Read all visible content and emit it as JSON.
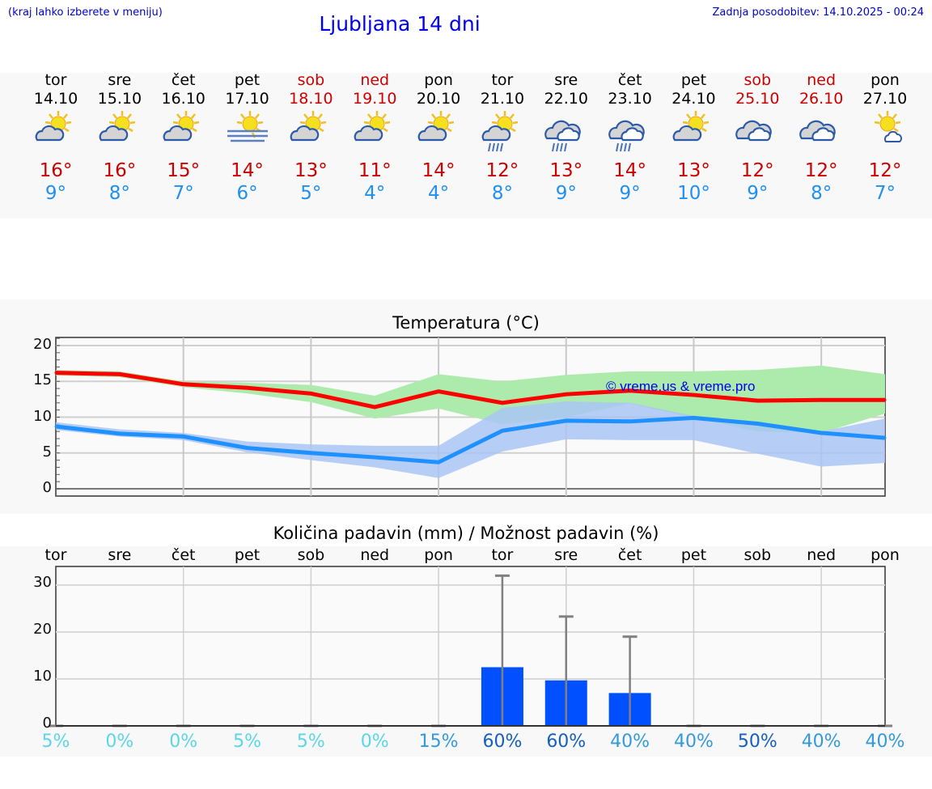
{
  "header": {
    "hint": "(kraj lahko izberete v meniju)",
    "title": "Ljubljana 14 dni",
    "updated": "Zadnja posodobitev: 14.10.2025 - 00:24"
  },
  "colors": {
    "weekday": "#000000",
    "weekend": "#cc0000",
    "max": "#ff0000",
    "min": "#1e90ff",
    "max_band": "#acebac",
    "min_band": "#a9c6f3",
    "bar": "#0050ff",
    "error": "#808080"
  },
  "days": [
    {
      "dow": "tor",
      "date": "14.10",
      "weekend": false,
      "icon": "partly-cloudy-icon",
      "max": "16°",
      "min": "9°"
    },
    {
      "dow": "sre",
      "date": "15.10",
      "weekend": false,
      "icon": "partly-cloudy-icon",
      "max": "16°",
      "min": "8°"
    },
    {
      "dow": "čet",
      "date": "16.10",
      "weekend": false,
      "icon": "partly-cloudy-icon",
      "max": "15°",
      "min": "7°"
    },
    {
      "dow": "pet",
      "date": "17.10",
      "weekend": false,
      "icon": "fog-sun-icon",
      "max": "14°",
      "min": "6°"
    },
    {
      "dow": "sob",
      "date": "18.10",
      "weekend": true,
      "icon": "partly-cloudy-icon",
      "max": "13°",
      "min": "5°"
    },
    {
      "dow": "ned",
      "date": "19.10",
      "weekend": true,
      "icon": "partly-cloudy-icon",
      "max": "11°",
      "min": "4°"
    },
    {
      "dow": "pon",
      "date": "20.10",
      "weekend": false,
      "icon": "partly-cloudy-icon",
      "max": "14°",
      "min": "4°"
    },
    {
      "dow": "tor",
      "date": "21.10",
      "weekend": false,
      "icon": "partly-cloudy-rain-icon",
      "max": "12°",
      "min": "8°"
    },
    {
      "dow": "sre",
      "date": "22.10",
      "weekend": false,
      "icon": "cloudy-rain-icon",
      "max": "13°",
      "min": "9°"
    },
    {
      "dow": "čet",
      "date": "23.10",
      "weekend": false,
      "icon": "cloudy-rain-icon",
      "max": "14°",
      "min": "9°"
    },
    {
      "dow": "pet",
      "date": "24.10",
      "weekend": false,
      "icon": "partly-cloudy-icon",
      "max": "13°",
      "min": "10°"
    },
    {
      "dow": "sob",
      "date": "25.10",
      "weekend": true,
      "icon": "cloudy-icon",
      "max": "12°",
      "min": "9°"
    },
    {
      "dow": "ned",
      "date": "26.10",
      "weekend": true,
      "icon": "cloudy-icon",
      "max": "12°",
      "min": "8°"
    },
    {
      "dow": "pon",
      "date": "27.10",
      "weekend": false,
      "icon": "sun-small-cloud-icon",
      "max": "12°",
      "min": "7°"
    }
  ],
  "chart_data": [
    {
      "type": "line",
      "title": "Temperatura (°C)",
      "watermark": "© vreme.us & vreme.pro",
      "ylim": [
        -1,
        21
      ],
      "yticks": [
        "20",
        "15",
        "10",
        "5",
        "0"
      ],
      "grid": true,
      "x": [
        "14.10",
        "15.10",
        "16.10",
        "17.10",
        "18.10",
        "19.10",
        "20.10",
        "21.10",
        "22.10",
        "23.10",
        "24.10",
        "25.10",
        "26.10",
        "27.10"
      ],
      "series": [
        {
          "key": "max",
          "values": [
            16.2,
            16.0,
            14.6,
            14.1,
            13.3,
            11.4,
            13.6,
            12.0,
            13.2,
            13.7,
            13.1,
            12.3,
            12.4,
            12.4
          ],
          "band_low": [
            15.8,
            15.6,
            14.2,
            13.3,
            12.1,
            9.8,
            11.2,
            9.0,
            10.0,
            11.9,
            9.9,
            8.0,
            7.8,
            10.5
          ],
          "band_high": [
            16.6,
            16.4,
            15.0,
            14.8,
            14.5,
            13.0,
            16.0,
            15.0,
            15.9,
            16.4,
            16.4,
            16.6,
            17.2,
            16.0
          ]
        },
        {
          "key": "min",
          "values": [
            8.7,
            7.7,
            7.3,
            5.7,
            5.0,
            4.4,
            3.7,
            8.1,
            9.5,
            9.4,
            9.9,
            9.1,
            7.8,
            7.1
          ],
          "band_low": [
            8.2,
            7.3,
            6.8,
            5.1,
            4.0,
            3.0,
            1.5,
            5.2,
            6.9,
            6.8,
            6.8,
            4.9,
            3.1,
            3.6
          ],
          "band_high": [
            9.3,
            8.3,
            7.8,
            6.6,
            6.2,
            6.0,
            6.0,
            11.3,
            12.2,
            12.0,
            10.2,
            9.0,
            8.0,
            9.8
          ]
        }
      ]
    },
    {
      "type": "bar",
      "title": "Količina padavin (mm) / Možnost padavin (%)",
      "ylim": [
        0,
        34
      ],
      "yticks": [
        "30",
        "20",
        "10",
        "0"
      ],
      "grid": true,
      "categories": [
        "tor",
        "sre",
        "čet",
        "pet",
        "sob",
        "ned",
        "pon",
        "tor",
        "sre",
        "čet",
        "pet",
        "sob",
        "ned",
        "pon"
      ],
      "values": [
        0,
        0,
        0,
        0,
        0,
        0,
        0,
        12.5,
        9.7,
        7.0,
        0,
        0,
        0,
        0
      ],
      "error_high": [
        0,
        0,
        0,
        0,
        0,
        0,
        0,
        32,
        23.3,
        19,
        0,
        0,
        0,
        0
      ],
      "probability": [
        "5%",
        "0%",
        "0%",
        "5%",
        "5%",
        "0%",
        "15%",
        "60%",
        "60%",
        "40%",
        "40%",
        "50%",
        "40%",
        "40%"
      ],
      "probability_colors": [
        "#5ad6e8",
        "#5ad6e8",
        "#5ad6e8",
        "#5ad6e8",
        "#5ad6e8",
        "#5ad6e8",
        "#3399dd",
        "#1560bd",
        "#1560bd",
        "#3399dd",
        "#3399dd",
        "#1560bd",
        "#3399dd",
        "#3399dd"
      ]
    }
  ]
}
